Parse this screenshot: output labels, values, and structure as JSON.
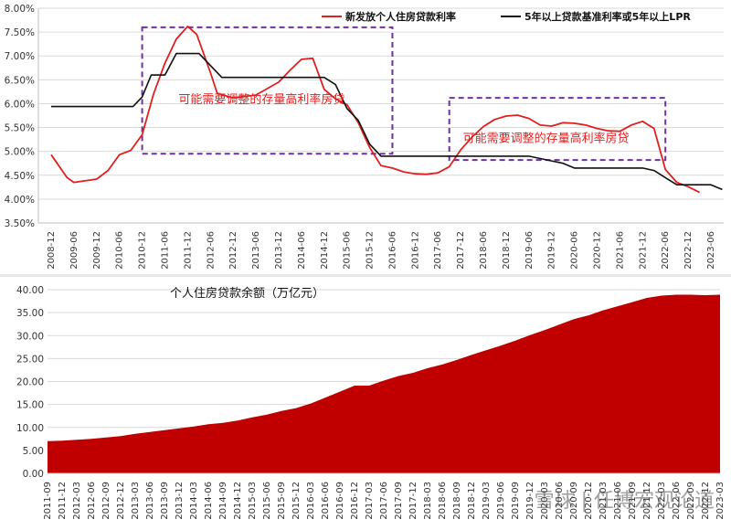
{
  "chart_data": [
    {
      "type": "line",
      "ylim": [
        0.035,
        0.08
      ],
      "yticks": [
        0.035,
        0.04,
        0.045,
        0.05,
        0.055,
        0.06,
        0.065,
        0.07,
        0.075,
        0.08
      ],
      "ytick_labels": [
        "3.50%",
        "4.00%",
        "4.50%",
        "5.00%",
        "5.50%",
        "6.00%",
        "6.50%",
        "7.00%",
        "7.50%",
        "8.00%"
      ],
      "xtick_labels": [
        "2008-12",
        "2009-06",
        "2009-12",
        "2010-06",
        "2010-12",
        "2011-06",
        "2011-12",
        "2012-06",
        "2012-12",
        "2013-06",
        "2013-12",
        "2014-06",
        "2014-12",
        "2015-06",
        "2015-12",
        "2016-06",
        "2016-12",
        "2017-06",
        "2017-12",
        "2018-06",
        "2018-12",
        "2019-06",
        "2019-12",
        "2020-06",
        "2020-12",
        "2021-06",
        "2021-12",
        "2022-06",
        "2022-12",
        "2023-06"
      ],
      "series": [
        {
          "name": "新发放个人住房贷款利率",
          "color": "#e02020",
          "points": [
            [
              0,
              0.0493
            ],
            [
              0.7,
              0.0445
            ],
            [
              1.0,
              0.0435
            ],
            [
              2.0,
              0.0442
            ],
            [
              2.5,
              0.046
            ],
            [
              3.0,
              0.0493
            ],
            [
              3.5,
              0.0502
            ],
            [
              4.0,
              0.0535
            ],
            [
              4.5,
              0.062
            ],
            [
              5.0,
              0.0685
            ],
            [
              5.5,
              0.0735
            ],
            [
              6.0,
              0.0762
            ],
            [
              6.4,
              0.0745
            ],
            [
              7.0,
              0.0665
            ],
            [
              7.3,
              0.0622
            ],
            [
              8.0,
              0.0612
            ],
            [
              9.0,
              0.0618
            ],
            [
              10.0,
              0.0645
            ],
            [
              10.5,
              0.067
            ],
            [
              11.0,
              0.0693
            ],
            [
              11.5,
              0.0695
            ],
            [
              12.0,
              0.063
            ],
            [
              12.5,
              0.061
            ],
            [
              13.0,
              0.0598
            ],
            [
              13.5,
              0.056
            ],
            [
              14.0,
              0.0508
            ],
            [
              14.5,
              0.047
            ],
            [
              15.0,
              0.0465
            ],
            [
              15.5,
              0.0457
            ],
            [
              16.0,
              0.0453
            ],
            [
              16.5,
              0.0452
            ],
            [
              17.0,
              0.0455
            ],
            [
              17.5,
              0.0468
            ],
            [
              18.0,
              0.0503
            ],
            [
              18.5,
              0.053
            ],
            [
              19.0,
              0.0552
            ],
            [
              19.5,
              0.0567
            ],
            [
              20.0,
              0.0574
            ],
            [
              20.5,
              0.0576
            ],
            [
              21.0,
              0.0569
            ],
            [
              21.5,
              0.0555
            ],
            [
              22.0,
              0.0553
            ],
            [
              22.5,
              0.056
            ],
            [
              23.0,
              0.0559
            ],
            [
              23.5,
              0.0555
            ],
            [
              24.0,
              0.0548
            ],
            [
              24.5,
              0.0543
            ],
            [
              25.0,
              0.0542
            ],
            [
              25.5,
              0.0555
            ],
            [
              26.0,
              0.0563
            ],
            [
              26.5,
              0.0548
            ],
            [
              27.0,
              0.0462
            ],
            [
              27.5,
              0.0435
            ],
            [
              28.0,
              0.0426
            ],
            [
              28.5,
              0.0414
            ]
          ]
        },
        {
          "name": "5年以上贷款基准利率或5年以上LPR",
          "color": "#111111",
          "points": [
            [
              0,
              0.0594
            ],
            [
              3.0,
              0.0594
            ],
            [
              3.6,
              0.0594
            ],
            [
              4.0,
              0.0614
            ],
            [
              4.4,
              0.066
            ],
            [
              5.0,
              0.066
            ],
            [
              5.5,
              0.0705
            ],
            [
              6.5,
              0.0705
            ],
            [
              7.5,
              0.0655
            ],
            [
              11.0,
              0.0655
            ],
            [
              12.0,
              0.0655
            ],
            [
              12.5,
              0.064
            ],
            [
              13.0,
              0.059
            ],
            [
              13.5,
              0.0565
            ],
            [
              14.0,
              0.0515
            ],
            [
              14.5,
              0.049
            ],
            [
              17.5,
              0.049
            ],
            [
              21.0,
              0.049
            ],
            [
              21.5,
              0.0485
            ],
            [
              22.0,
              0.048
            ],
            [
              22.5,
              0.0475
            ],
            [
              23.0,
              0.0465
            ],
            [
              26.0,
              0.0465
            ],
            [
              26.5,
              0.046
            ],
            [
              27.0,
              0.0445
            ],
            [
              27.5,
              0.043
            ],
            [
              28.0,
              0.043
            ],
            [
              29.0,
              0.043
            ],
            [
              29.5,
              0.042
            ]
          ]
        }
      ],
      "annotations": [
        {
          "text": "可能需要调整的存量高利率房贷",
          "color": "#e02020",
          "box_x": [
            4.0,
            15.0
          ],
          "box_y": [
            0.0495,
            0.076
          ]
        },
        {
          "text": "可能需要调整的存量高利率房贷",
          "color": "#e02020",
          "box_x": [
            17.5,
            27.0
          ],
          "box_y": [
            0.0482,
            0.0612
          ]
        }
      ]
    },
    {
      "type": "area",
      "title": "个人住房贷款余额（万亿元）",
      "ylim": [
        0,
        40
      ],
      "yticks": [
        0,
        5,
        10,
        15,
        20,
        25,
        30,
        35,
        40
      ],
      "ytick_labels": [
        "0.00",
        "5.00",
        "10.00",
        "15.00",
        "20.00",
        "25.00",
        "30.00",
        "35.00",
        "40.00"
      ],
      "color": "#c00000",
      "categories": [
        "2011-09",
        "2011-12",
        "2012-03",
        "2012-06",
        "2012-09",
        "2012-12",
        "2013-03",
        "2013-06",
        "2013-09",
        "2013-12",
        "2014-03",
        "2014-06",
        "2014-09",
        "2014-12",
        "2015-03",
        "2015-06",
        "2015-09",
        "2015-12",
        "2016-03",
        "2016-06",
        "2016-09",
        "2016-12",
        "2017-03",
        "2017-06",
        "2017-09",
        "2017-12",
        "2018-03",
        "2018-06",
        "2018-09",
        "2018-12",
        "2019-03",
        "2019-06",
        "2019-09",
        "2019-12",
        "2020-03",
        "2020-06",
        "2020-09",
        "2020-12",
        "2021-03",
        "2021-06",
        "2021-09",
        "2021-12",
        "2022-03",
        "2022-06",
        "2022-09",
        "2022-12",
        "2023-03"
      ],
      "values": [
        7.0,
        7.1,
        7.3,
        7.5,
        7.8,
        8.1,
        8.6,
        9.0,
        9.4,
        9.8,
        10.2,
        10.7,
        11.0,
        11.5,
        12.2,
        12.8,
        13.6,
        14.2,
        15.2,
        16.5,
        17.8,
        19.1,
        19.1,
        20.2,
        21.2,
        21.9,
        22.9,
        23.7,
        24.7,
        25.8,
        26.8,
        27.8,
        28.9,
        30.1,
        31.2,
        32.4,
        33.6,
        34.4,
        35.5,
        36.4,
        37.3,
        38.2,
        38.7,
        38.9,
        38.9,
        38.8,
        38.9
      ]
    }
  ],
  "watermark": "雪球 | 任博宏观论道"
}
